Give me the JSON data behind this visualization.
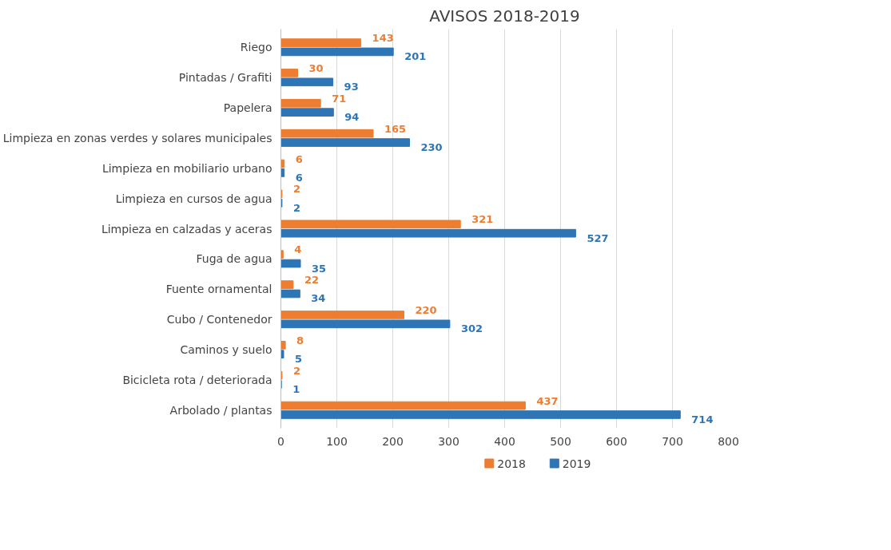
{
  "chart_data": {
    "type": "bar",
    "orientation": "horizontal",
    "title": "AVISOS 2018-2019",
    "categories": [
      "Riego",
      "Pintadas / Grafiti",
      "Papelera",
      "Limpieza en zonas verdes y solares municipales",
      "Limpieza en mobiliario urbano",
      "Limpieza en cursos de agua",
      "Limpieza en calzadas y aceras",
      "Fuga de agua",
      "Fuente ornamental",
      "Cubo / Contenedor",
      "Caminos y suelo",
      "Bicicleta rota / deteriorada",
      "Arbolado / plantas"
    ],
    "series": [
      {
        "name": "2018",
        "color": "#ed7d31",
        "values": [
          143,
          30,
          71,
          165,
          6,
          2,
          321,
          4,
          22,
          220,
          8,
          2,
          437
        ]
      },
      {
        "name": "2019",
        "color": "#2e75b6",
        "values": [
          201,
          93,
          94,
          230,
          6,
          2,
          527,
          35,
          34,
          302,
          5,
          1,
          714
        ]
      }
    ],
    "xlim": [
      0,
      800
    ],
    "xticks": [
      0,
      100,
      200,
      300,
      400,
      500,
      600,
      700,
      800
    ],
    "grid": "x",
    "legend": "bottom",
    "data_labels": true
  }
}
